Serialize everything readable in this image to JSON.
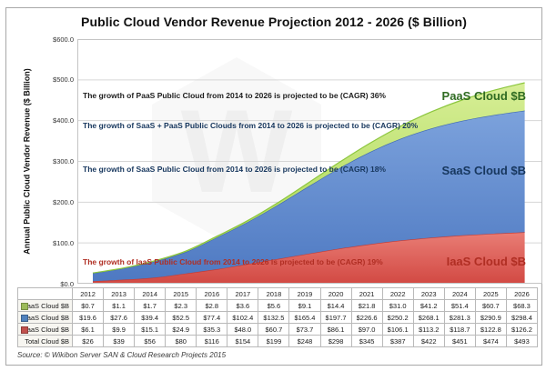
{
  "page": {
    "title": "Public Cloud Vendor Revenue Projection 2012 - 2026 ($ Billion)",
    "source": "Source: © Wikibon Server SAN & Cloud Research Projects 2015"
  },
  "y_axis": {
    "title": "Annual Public Cloud Vendor Revenue ($ Billion)",
    "ticks": [
      "$600.0",
      "$500.0",
      "$400.0",
      "$300.0",
      "$200.0",
      "$100.0",
      "$0.0"
    ]
  },
  "annotations": [
    {
      "id": "paas",
      "text": "The growth of PaaS Public Cloud from 2014 to 2026 is projected to be (CAGR) 36%",
      "color": "#1d1d1d"
    },
    {
      "id": "saas_paas",
      "text": "The growth of SaaS + PaaS Public Clouds from 2014 to 2026 is projected to be (CAGR) 20%",
      "color": "#17375e"
    },
    {
      "id": "saas",
      "text": "The growth of SaaS Public Cloud from 2014 to 2026 is projected to be (CAGR) 18%",
      "color": "#17375e"
    },
    {
      "id": "iaas",
      "text": "The growth of IaaS Public Cloud from 2014 to 2026 is projected to be (CAGR) 19%",
      "color": "#b02e23"
    }
  ],
  "series_labels": [
    {
      "id": "paas",
      "text": "PaaS Cloud $B",
      "color": "#2f6b22"
    },
    {
      "id": "saas",
      "text": "SaaS Cloud $B",
      "color": "#17375e"
    },
    {
      "id": "iaas",
      "text": "IaaS Cloud $B",
      "color": "#b02e23"
    }
  ],
  "chart_data": {
    "type": "area",
    "stacked": true,
    "title": "Public Cloud Vendor Revenue Projection 2012 - 2026 ($ Billion)",
    "xlabel": "",
    "ylabel": "Annual Public Cloud Vendor Revenue ($ Billion)",
    "ylim": [
      0,
      600
    ],
    "grid": true,
    "legend_position": "table-row-labels",
    "categories": [
      "2012",
      "2013",
      "2014",
      "2015",
      "2016",
      "2017",
      "2018",
      "2019",
      "2020",
      "2021",
      "2022",
      "2023",
      "2024",
      "2025",
      "2026"
    ],
    "series": [
      {
        "id": "iaas",
        "name": "IaaS Cloud $B",
        "values": [
          6.1,
          9.9,
          15.1,
          24.9,
          35.3,
          48.0,
          60.7,
          73.7,
          86.1,
          97.0,
          106.1,
          113.2,
          118.7,
          122.8,
          126.2
        ],
        "fill_top": "#e97d75",
        "fill_bottom": "#d24943",
        "edge": "#c23a34",
        "legend_color": "#c0504d"
      },
      {
        "id": "saas",
        "name": "SaaS Cloud $B",
        "values": [
          19.6,
          27.6,
          39.4,
          52.5,
          77.4,
          102.4,
          132.5,
          165.4,
          197.7,
          226.6,
          250.2,
          268.1,
          281.3,
          290.9,
          298.4
        ],
        "fill_top": "#7ca2dc",
        "fill_bottom": "#4e79c2",
        "edge": "#3f68b0",
        "legend_color": "#4f81bd"
      },
      {
        "id": "paas",
        "name": "PaaS Cloud $B",
        "values": [
          0.7,
          1.1,
          1.7,
          2.3,
          2.8,
          3.6,
          5.6,
          9.1,
          14.4,
          21.8,
          31.0,
          41.2,
          51.4,
          60.7,
          68.3
        ],
        "fill_top": "#d7ee96",
        "fill_bottom": "#a4d54d",
        "edge": "#8cc63e",
        "legend_color": "#9bbb59"
      }
    ]
  },
  "table": {
    "header": [
      "",
      "2012",
      "2013",
      "2014",
      "2015",
      "2016",
      "2017",
      "2018",
      "2019",
      "2020",
      "2021",
      "2022",
      "2023",
      "2024",
      "2025",
      "2026"
    ],
    "rows": [
      {
        "id": "paas",
        "label": "PaaS Cloud $B",
        "marker_color": "#9bbb59",
        "values": [
          "$0.7",
          "$1.1",
          "$1.7",
          "$2.3",
          "$2.8",
          "$3.6",
          "$5.6",
          "$9.1",
          "$14.4",
          "$21.8",
          "$31.0",
          "$41.2",
          "$51.4",
          "$60.7",
          "$68.3"
        ]
      },
      {
        "id": "saas",
        "label": "SaaS Cloud $B",
        "marker_color": "#4f81bd",
        "values": [
          "$19.6",
          "$27.6",
          "$39.4",
          "$52.5",
          "$77.4",
          "$102.4",
          "$132.5",
          "$165.4",
          "$197.7",
          "$226.6",
          "$250.2",
          "$268.1",
          "$281.3",
          "$290.9",
          "$298.4"
        ]
      },
      {
        "id": "iaas",
        "label": "IaaS Cloud $B",
        "marker_color": "#c0504d",
        "values": [
          "$6.1",
          "$9.9",
          "$15.1",
          "$24.9",
          "$35.3",
          "$48.0",
          "$60.7",
          "$73.7",
          "$86.1",
          "$97.0",
          "$106.1",
          "$113.2",
          "$118.7",
          "$122.8",
          "$126.2"
        ]
      },
      {
        "id": "total",
        "label": "Total Cloud $B",
        "marker_color": null,
        "values": [
          "$26",
          "$39",
          "$56",
          "$80",
          "$116",
          "$154",
          "$199",
          "$248",
          "$298",
          "$345",
          "$387",
          "$422",
          "$451",
          "$474",
          "$493"
        ]
      }
    ]
  }
}
